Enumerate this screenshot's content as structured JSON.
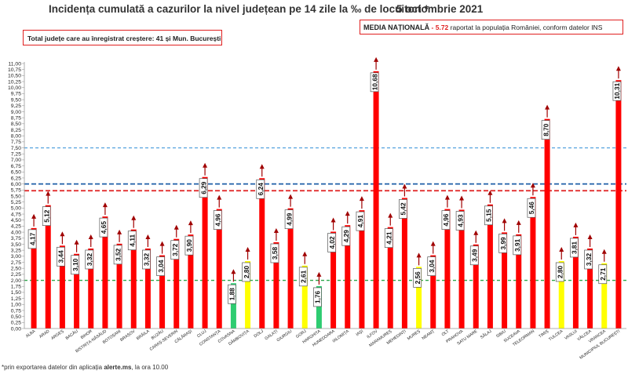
{
  "header": {
    "title": "Incidența cumulată a cazurilor la nivel județean pe 14 zile la ‰ de locuitori *",
    "date": "5 octombrie 2021",
    "info_box": "Total județe care au înregistrat creștere:  41 și Mun. București",
    "average_label": "MEDIA NAȚIONALĂ",
    "average_value": "- 5.72",
    "average_note": " raportat la populația României, conform datelor INS"
  },
  "footnote": {
    "prefix": "*prin exportarea datelor din aplicația ",
    "app": "alerte.ms",
    "suffix": ", la ora 10.00"
  },
  "colors": {
    "red": "#ff0000",
    "yellow": "#ffff00",
    "green": "#2ecc71",
    "gray": "#a8a8a8",
    "dark_red": "#a00000",
    "light_blue": "#5fa8e0",
    "dark_blue": "#1f5fa8",
    "green_line": "#2ea64a",
    "red_dash": "#e02020"
  },
  "chart_data": {
    "type": "bar",
    "title": "Incidența cumulată a cazurilor la nivel județean pe 14 zile la ‰ de locuitori *",
    "ylim": [
      0,
      11
    ],
    "grid": false,
    "yticks": [
      "0,00",
      "0,25",
      "0,50",
      "0,75",
      "1,00",
      "1,25",
      "1,50",
      "1,75",
      "2,00",
      "2,25",
      "2,50",
      "2,75",
      "3,00",
      "3,25",
      "3,50",
      "3,75",
      "4,00",
      "4,25",
      "4,50",
      "4,75",
      "5,00",
      "5,25",
      "5,50",
      "5,75",
      "6,00",
      "6,25",
      "6,50",
      "6,75",
      "7,00",
      "7,25",
      "7,50",
      "7,75",
      "8,00",
      "8,25",
      "8,50",
      "8,75",
      "9,00",
      "9,25",
      "9,50",
      "9,75",
      "10,00",
      "10,25",
      "10,50",
      "10,75",
      "11,00"
    ],
    "categories": [
      "ALBA",
      "ARAD",
      "ARGEȘ",
      "BACĂU",
      "BIHOR",
      "BISTRIȚA-NĂSĂUD",
      "BOTOȘANI",
      "BRAȘOV",
      "BRĂILA",
      "BUZĂU",
      "CARAȘ-SEVERIN",
      "CĂLĂRAȘI",
      "CLUJ",
      "CONSTANȚA",
      "COVASNA",
      "DÂMBOVIȚA",
      "DOLJ",
      "GALAȚI",
      "GIURGIU",
      "GORJ",
      "HARGHITA",
      "HUNEDOARA",
      "IALOMIȚA",
      "IAȘI",
      "ILFOV",
      "MARAMUREȘ",
      "MEHEDINȚI",
      "MUREȘ",
      "NEAMȚ",
      "OLT",
      "PRAHOVA",
      "SATU MARE",
      "SĂLAJ",
      "SIBIU",
      "SUCEAVA",
      "TELEORMAN",
      "TIMIȘ",
      "TULCEA",
      "VASLUI",
      "VÂLCEA",
      "VRANCEA",
      "MUNICIPIUL BUCUREȘTI"
    ],
    "values": [
      4.17,
      5.12,
      3.44,
      3.1,
      3.32,
      4.65,
      3.52,
      4.11,
      3.32,
      3.04,
      3.72,
      3.9,
      6.29,
      4.96,
      1.88,
      2.8,
      6.24,
      3.58,
      4.99,
      2.61,
      1.76,
      4.02,
      4.29,
      4.91,
      10.68,
      4.21,
      5.42,
      2.56,
      3.04,
      4.96,
      4.93,
      3.49,
      5.15,
      3.99,
      3.91,
      5.46,
      8.7,
      2.8,
      3.81,
      3.32,
      2.71,
      10.31
    ],
    "labels": [
      "4,17",
      "5,12",
      "3,44",
      "3,10",
      "3,32",
      "4,65",
      "3,52",
      "4,11",
      "3,32",
      "3,04",
      "3,72",
      "3,90",
      "6,29",
      "4,96",
      "1,88",
      "2,80",
      "6,24",
      "3,58",
      "4,99",
      "2,61",
      "1,76",
      "4,02",
      "4,29",
      "4,91",
      "10,68",
      "4,21",
      "5,42",
      "2,56",
      "3,04",
      "4,96",
      "4,93",
      "3,49",
      "5,15",
      "3,99",
      "3,91",
      "5,46",
      "8,70",
      "2,80",
      "3,81",
      "3,32",
      "2,71",
      "10,31"
    ],
    "bar_colors": [
      "red",
      "red",
      "red",
      "red",
      "red",
      "red",
      "red",
      "red",
      "red",
      "red",
      "red",
      "red",
      "red",
      "red",
      "green",
      "yellow",
      "red",
      "red",
      "red",
      "yellow",
      "green",
      "red",
      "red",
      "red",
      "red",
      "red",
      "red",
      "yellow",
      "red",
      "red",
      "red",
      "red",
      "red",
      "red",
      "red",
      "red",
      "red",
      "yellow",
      "red",
      "red",
      "yellow",
      "red"
    ],
    "ref_lines": [
      {
        "value": 7.5,
        "style": "dashed",
        "color": "light_blue"
      },
      {
        "value": 6.0,
        "style": "dashed",
        "color": "dark_blue"
      },
      {
        "value": 5.72,
        "style": "dashed",
        "color": "red_dash"
      },
      {
        "value": 2.0,
        "style": "dashed",
        "color": "green_line"
      }
    ]
  }
}
